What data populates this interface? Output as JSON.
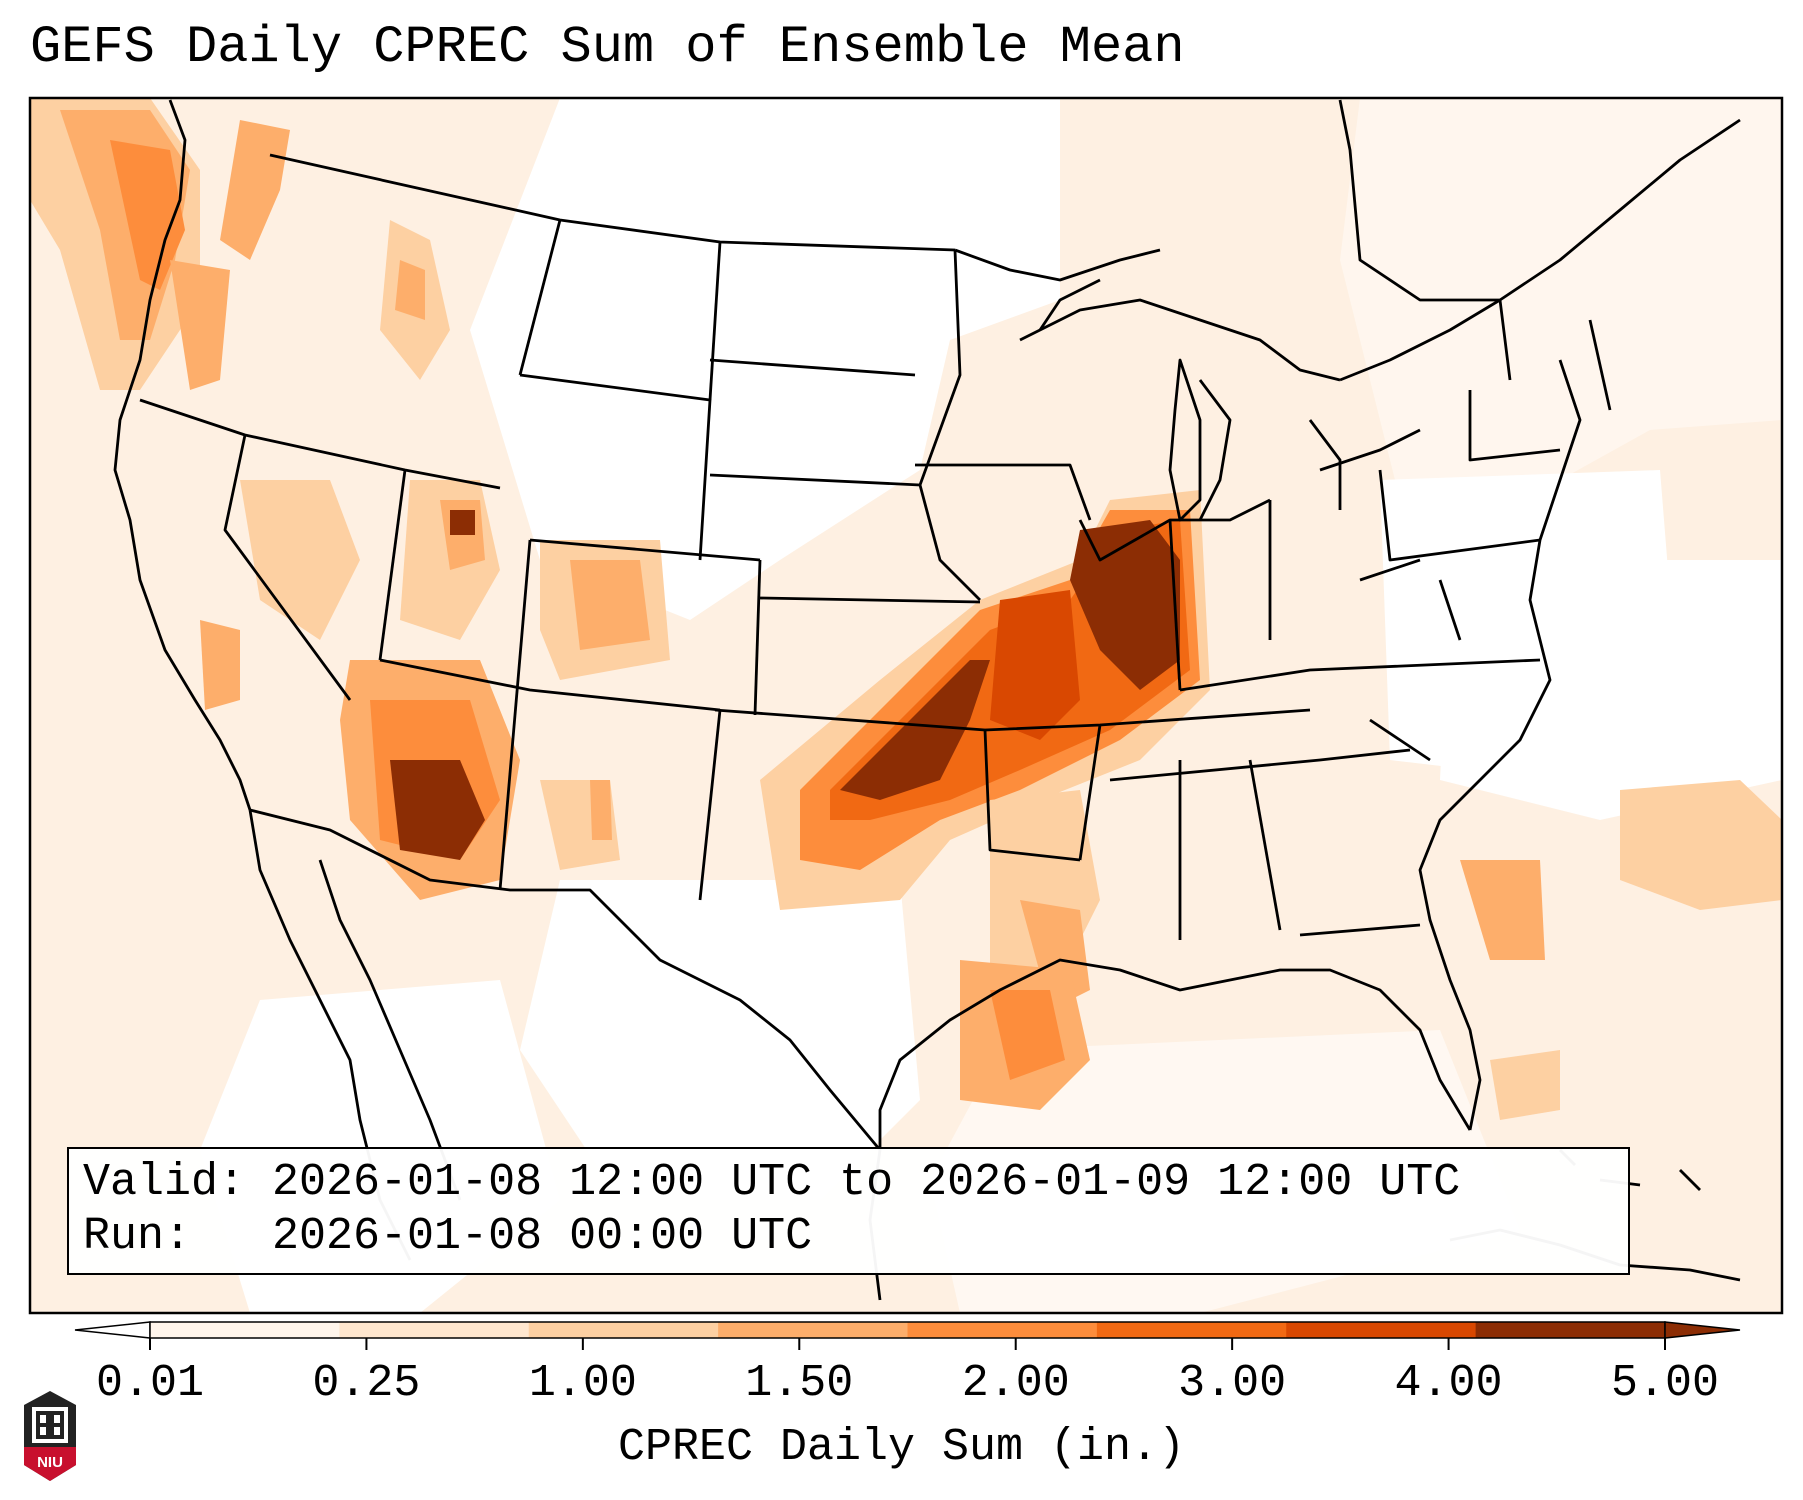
{
  "title": "GEFS Daily CPREC Sum of Ensemble Mean",
  "info": {
    "valid": "Valid: 2026-01-08 12:00 UTC to 2026-01-09 12:00 UTC",
    "run": "Run:   2026-01-08 00:00 UTC"
  },
  "colorbar": {
    "label": "CPREC Daily Sum (in.)",
    "ticks": [
      "0.01",
      "0.25",
      "1.00",
      "1.50",
      "2.00",
      "3.00",
      "4.00",
      "5.00"
    ],
    "colors": [
      "#fff5eb",
      "#fee6ce",
      "#fdd0a2",
      "#fdae6b",
      "#fd8d3c",
      "#f16913",
      "#d94801",
      "#8c2d04"
    ],
    "under_color": "#ffffff",
    "over_color": "#8c2d04"
  },
  "logo": {
    "text": "NIU",
    "color": "#c8102e"
  }
}
